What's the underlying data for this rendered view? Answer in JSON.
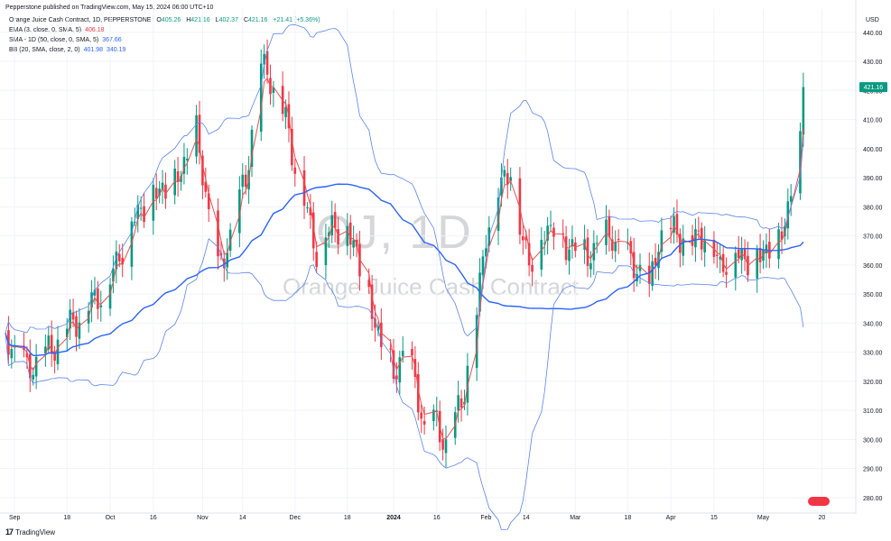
{
  "header": {
    "published_by": "Pepperstone published on TradingView.com, May 15, 2024 06:00 UTC+10"
  },
  "legend": {
    "title": "Orange Juice Cash Contract, 1D, PEPPERSTONE",
    "ohlc": {
      "o_label": "O",
      "o": "405.26",
      "h_label": "H",
      "h": "421.16",
      "l_label": "L",
      "l": "402.37",
      "c_label": "C",
      "c": "421.16",
      "change": "+21.41 (+5.36%)"
    },
    "ema": {
      "label": "EMA (3, close, 0, SMA, 5)",
      "value": "406.18"
    },
    "sma": {
      "label": "SMA - 1D (50, close, 0, SMA, 5)",
      "value": "367.66"
    },
    "bb": {
      "label": "BB (20, SMA, close, 2, 0)",
      "upper": "401.98",
      "lower": "340.19"
    }
  },
  "currency": "USD",
  "watermark": {
    "symbol": "OJ, 1D",
    "name": "Orange Juice Cash Contract"
  },
  "footer": {
    "logo": "17",
    "brand": "TradingView"
  },
  "colors": {
    "up": "#089981",
    "down": "#f23645",
    "ema": "#e8514f",
    "sma": "#2962ff",
    "bb": "#5b84f0",
    "grid": "#f0f3fa",
    "axis_text": "#131722"
  },
  "chart_data": {
    "type": "candlestick",
    "title": "Orange Juice Cash Contract, 1D, PEPPERSTONE",
    "ylabel": "USD",
    "ylim": [
      275,
      448
    ],
    "xlim": [
      "2023-08-29",
      "2024-05-24"
    ],
    "grid": true,
    "y_ticks": [
      "440.00",
      "430.00",
      "420.00",
      "410.00",
      "400.00",
      "390.00",
      "380.00",
      "370.00",
      "360.00",
      "350.00",
      "340.00",
      "330.00",
      "320.00",
      "310.00",
      "300.00",
      "290.00",
      "280.00"
    ],
    "x_ticks": [
      {
        "label": "Sep",
        "date": "2023-09-01"
      },
      {
        "label": "18",
        "date": "2023-09-18"
      },
      {
        "label": "Oct",
        "date": "2023-10-02"
      },
      {
        "label": "16",
        "date": "2023-10-16"
      },
      {
        "label": "Nov",
        "date": "2023-11-01"
      },
      {
        "label": "14",
        "date": "2023-11-14"
      },
      {
        "label": "Dec",
        "date": "2023-12-01"
      },
      {
        "label": "18",
        "date": "2023-12-18"
      },
      {
        "label": "2024",
        "date": "2024-01-02"
      },
      {
        "label": "16",
        "date": "2024-01-16"
      },
      {
        "label": "Feb",
        "date": "2024-02-01"
      },
      {
        "label": "14",
        "date": "2024-02-14"
      },
      {
        "label": "Mar",
        "date": "2024-03-01"
      },
      {
        "label": "18",
        "date": "2024-03-18"
      },
      {
        "label": "Apr",
        "date": "2024-04-01"
      },
      {
        "label": "15",
        "date": "2024-04-15"
      },
      {
        "label": "May",
        "date": "2024-05-01"
      },
      {
        "label": "20",
        "date": "2024-05-20"
      }
    ],
    "current_price": "421.16",
    "close_anchors": [
      [
        "2023-08-29",
        335
      ],
      [
        "2023-09-05",
        324
      ],
      [
        "2023-09-12",
        330
      ],
      [
        "2023-09-18",
        338
      ],
      [
        "2023-09-26",
        347
      ],
      [
        "2023-10-02",
        355
      ],
      [
        "2023-10-09",
        375
      ],
      [
        "2023-10-16",
        385
      ],
      [
        "2023-10-23",
        388
      ],
      [
        "2023-10-30",
        405
      ],
      [
        "2023-11-02",
        385
      ],
      [
        "2023-11-06",
        357
      ],
      [
        "2023-11-10",
        370
      ],
      [
        "2023-11-15",
        390
      ],
      [
        "2023-11-20",
        428
      ],
      [
        "2023-11-23",
        425
      ],
      [
        "2023-11-28",
        410
      ],
      [
        "2023-12-01",
        395
      ],
      [
        "2023-12-05",
        378
      ],
      [
        "2023-12-08",
        365
      ],
      [
        "2023-12-13",
        374
      ],
      [
        "2023-12-18",
        372
      ],
      [
        "2023-12-21",
        365
      ],
      [
        "2023-12-27",
        340
      ],
      [
        "2024-01-02",
        322
      ],
      [
        "2024-01-05",
        330
      ],
      [
        "2024-01-09",
        320
      ],
      [
        "2024-01-12",
        303
      ],
      [
        "2024-01-16",
        306
      ],
      [
        "2024-01-19",
        298
      ],
      [
        "2024-01-24",
        313
      ],
      [
        "2024-01-29",
        343
      ],
      [
        "2024-02-01",
        372
      ],
      [
        "2024-02-05",
        385
      ],
      [
        "2024-02-09",
        395
      ],
      [
        "2024-02-12",
        372
      ],
      [
        "2024-02-15",
        362
      ],
      [
        "2024-02-20",
        370
      ],
      [
        "2024-02-23",
        375
      ],
      [
        "2024-02-27",
        365
      ],
      [
        "2024-03-01",
        368
      ],
      [
        "2024-03-05",
        362
      ],
      [
        "2024-03-08",
        368
      ],
      [
        "2024-03-13",
        370
      ],
      [
        "2024-03-18",
        362
      ],
      [
        "2024-03-21",
        360
      ],
      [
        "2024-03-25",
        350
      ],
      [
        "2024-03-28",
        370
      ],
      [
        "2024-04-02",
        372
      ],
      [
        "2024-04-08",
        368
      ],
      [
        "2024-04-12",
        372
      ],
      [
        "2024-04-17",
        360
      ],
      [
        "2024-04-22",
        365
      ],
      [
        "2024-04-26",
        362
      ],
      [
        "2024-05-01",
        365
      ],
      [
        "2024-05-06",
        368
      ],
      [
        "2024-05-09",
        380
      ],
      [
        "2024-05-13",
        400
      ],
      [
        "2024-05-14",
        421.16
      ]
    ]
  }
}
